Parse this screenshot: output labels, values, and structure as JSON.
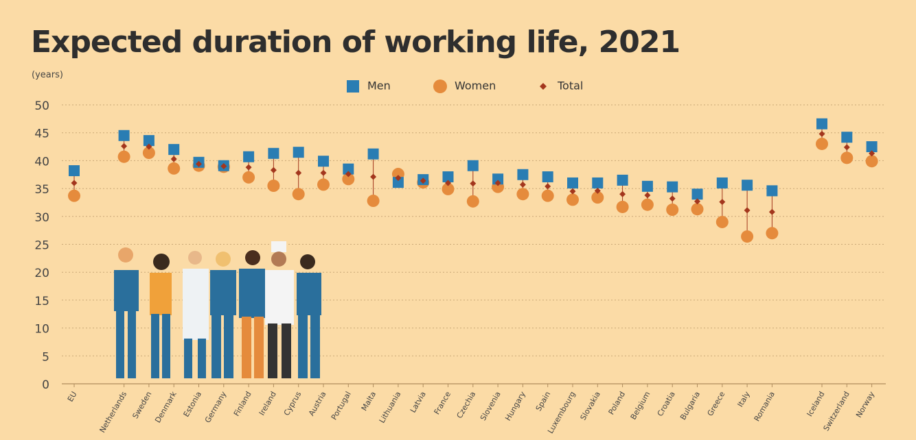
{
  "chart_data": {
    "type": "dot",
    "title": "Expected duration of working life, 2021",
    "y_label": "(years)",
    "categories": [
      "EU",
      null,
      "Netherlands",
      "Sweden",
      "Denmark",
      "Estonia",
      "Germany",
      "Finland",
      "Ireland",
      "Cyprus",
      "Austria",
      "Portugal",
      "Malta",
      "Lithuania",
      "Latvia",
      "France",
      "Czechia",
      "Slovenia",
      "Hungary",
      "Spain",
      "Luxembourg",
      "Slovakia",
      "Poland",
      "Belgium",
      "Croatia",
      "Bulgaria",
      "Greece",
      "Italy",
      "Romania",
      null,
      "Iceland",
      "Switzerland",
      "Norway"
    ],
    "series": [
      {
        "name": "Men",
        "color": "#2a7db3",
        "marker": "square",
        "values": [
          38.2,
          null,
          44.5,
          43.6,
          42.0,
          39.7,
          39.1,
          40.7,
          41.3,
          41.5,
          39.9,
          38.5,
          41.2,
          36.1,
          36.6,
          37.1,
          39.1,
          36.7,
          37.5,
          37.1,
          36.0,
          36.0,
          36.5,
          35.4,
          35.3,
          34.0,
          36.0,
          35.6,
          34.6,
          null,
          46.6,
          44.2,
          42.5
        ]
      },
      {
        "name": "Women",
        "color": "#e58b3c",
        "marker": "circle",
        "values": [
          33.7,
          null,
          40.7,
          41.4,
          38.6,
          39.1,
          38.9,
          37.0,
          35.5,
          34.0,
          35.7,
          36.7,
          32.8,
          37.6,
          36.1,
          34.9,
          32.7,
          35.3,
          34.0,
          33.7,
          33.0,
          33.4,
          31.7,
          32.1,
          31.2,
          31.3,
          29.0,
          26.4,
          27.0,
          null,
          43.0,
          40.5,
          39.9
        ]
      },
      {
        "name": "Total",
        "color": "#a3361d",
        "marker": "diamond",
        "values": [
          36.0,
          null,
          42.6,
          42.5,
          40.3,
          39.4,
          39.0,
          38.8,
          38.3,
          37.8,
          37.8,
          37.6,
          37.1,
          36.9,
          36.4,
          36.0,
          35.9,
          36.0,
          35.7,
          35.4,
          34.5,
          34.6,
          34.0,
          33.8,
          33.2,
          32.7,
          32.6,
          31.1,
          30.8,
          null,
          44.8,
          42.4,
          41.3
        ]
      }
    ],
    "ylim": [
      0,
      50
    ],
    "yticks": [
      0,
      5,
      10,
      15,
      20,
      25,
      30,
      35,
      40,
      45,
      50
    ],
    "grid": true,
    "legend": "top"
  }
}
